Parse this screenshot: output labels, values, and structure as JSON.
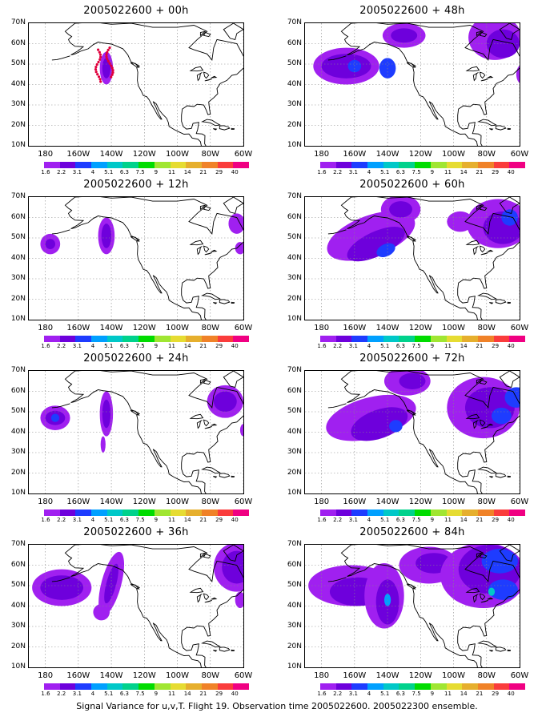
{
  "panels": [
    {
      "title": "2005022600 + 00h",
      "level": 0
    },
    {
      "title": "2005022600 + 48h",
      "level": 4
    },
    {
      "title": "2005022600 + 12h",
      "level": 1
    },
    {
      "title": "2005022600 + 60h",
      "level": 5
    },
    {
      "title": "2005022600 + 24h",
      "level": 2
    },
    {
      "title": "2005022600 + 72h",
      "level": 6
    },
    {
      "title": "2005022600 + 36h",
      "level": 3
    },
    {
      "title": "2005022600 + 84h",
      "level": 7
    }
  ],
  "y_labels": [
    "70N",
    "60N",
    "50N",
    "40N",
    "30N",
    "20N",
    "10N"
  ],
  "x_labels": [
    "180",
    "160W",
    "140W",
    "120W",
    "100W",
    "80W",
    "60W"
  ],
  "colorbar": {
    "colors": [
      "#a020f0",
      "#6e00dc",
      "#1e3cff",
      "#00a0ff",
      "#00c8c8",
      "#00d28c",
      "#00dc00",
      "#a0e632",
      "#e6dc32",
      "#e6af2d",
      "#f08228",
      "#fa3c3c",
      "#f00082"
    ],
    "labels": [
      "1.6",
      "2.2",
      "3.1",
      "4",
      "5.1",
      "6.3",
      "7.5",
      "9",
      "11",
      "14",
      "21",
      "29",
      "40"
    ]
  },
  "caption": "Signal Variance for u,v,T. Flight 19. Observation time 2005022600. 2005022300 ensemble."
}
